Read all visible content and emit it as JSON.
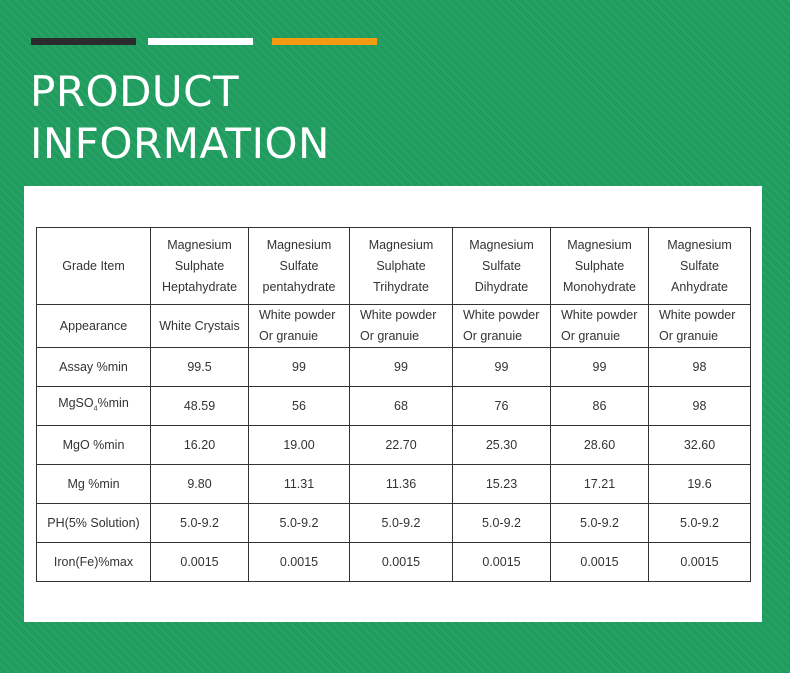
{
  "header": {
    "title_line1": "PRODUCT",
    "title_line2": "INFORMATION",
    "bar_colors": [
      "#2b2b2b",
      "#ffffff",
      "#f39c12"
    ]
  },
  "table": {
    "corner_label": "Grade Item",
    "columns": [
      [
        "Magnesium",
        "Sulphate",
        "Heptahydrate"
      ],
      [
        "Magnesium",
        "Sulfate",
        "pentahydrate"
      ],
      [
        "Magnesium",
        "Sulphate",
        "Trihydrate"
      ],
      [
        "Magnesium",
        "Sulfate",
        "Dihydrate"
      ],
      [
        "Magnesium",
        "Sulphate",
        "Monohydrate"
      ],
      [
        "Magnesium",
        "Sulfate",
        "Anhydrate"
      ]
    ],
    "appearance": {
      "label": "Appearance",
      "values": [
        [
          "White Crystais"
        ],
        [
          "White powder",
          "Or granuie"
        ],
        [
          "White powder",
          "Or granuie"
        ],
        [
          "White powder",
          "Or granuie"
        ],
        [
          "White powder",
          "Or granuie"
        ],
        [
          "White powder",
          "Or granuie"
        ]
      ]
    },
    "rows": [
      {
        "label": "Assay %min",
        "values": [
          "99.5",
          "99",
          "99",
          "99",
          "99",
          "98"
        ]
      },
      {
        "label_prefix": "MgSO",
        "label_sub": "4",
        "label_suffix": "%min",
        "values": [
          "48.59",
          "56",
          "68",
          "76",
          "86",
          "98"
        ]
      },
      {
        "label": "MgO %min",
        "values": [
          "16.20",
          "19.00",
          "22.70",
          "25.30",
          "28.60",
          "32.60"
        ]
      },
      {
        "label": "Mg %min",
        "values": [
          "9.80",
          "11.31",
          "11.36",
          "15.23",
          "17.21",
          "19.6"
        ]
      },
      {
        "label": "PH(5% Solution)",
        "values": [
          "5.0-9.2",
          "5.0-9.2",
          "5.0-9.2",
          "5.0-9.2",
          "5.0-9.2",
          "5.0-9.2"
        ]
      },
      {
        "label": "Iron(Fe)%max",
        "values": [
          "0.0015",
          "0.0015",
          "0.0015",
          "0.0015",
          "0.0015",
          "0.0015"
        ]
      }
    ]
  }
}
